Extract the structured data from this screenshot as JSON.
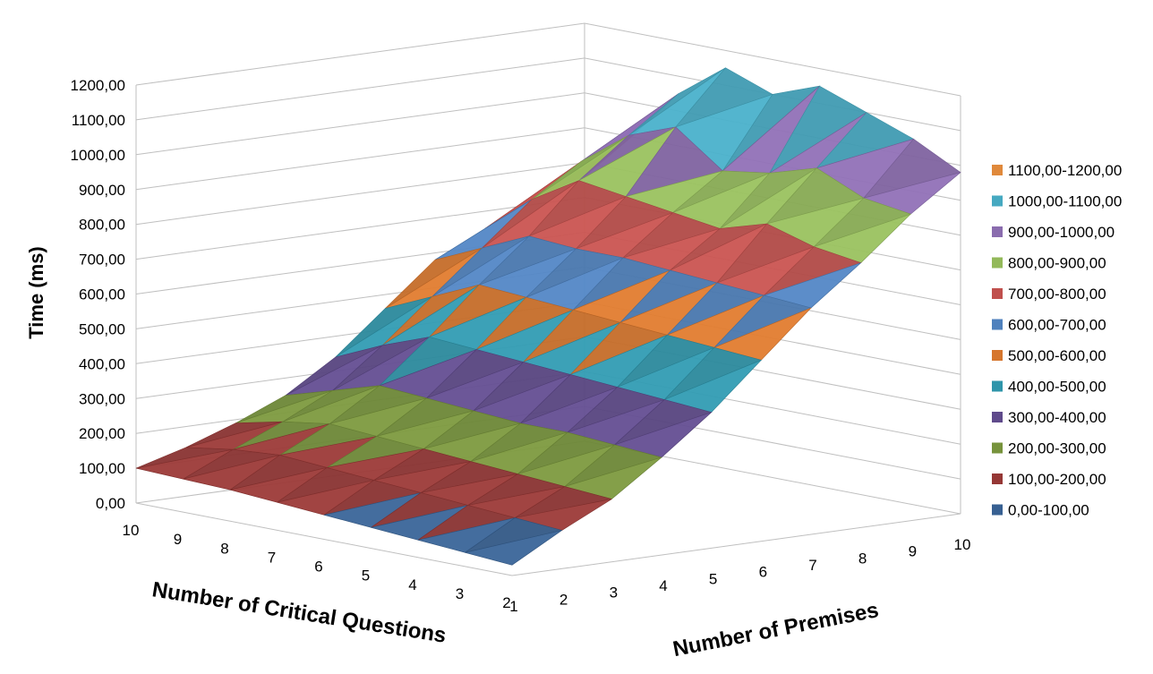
{
  "chart_data": {
    "type": "surface",
    "zlabel": "Time (ms)",
    "xlabel": "Number of Premises",
    "ylabel": "Number of Critical Questions",
    "premises": [
      "1",
      "2",
      "3",
      "4",
      "5",
      "6",
      "7",
      "8",
      "9",
      "10"
    ],
    "critical_questions": [
      "10",
      "9",
      "8",
      "7",
      "6",
      "5",
      "4",
      "3",
      "2"
    ],
    "zlim": [
      0,
      1200
    ],
    "z_ticks": [
      "0,00",
      "100,00",
      "200,00",
      "300,00",
      "400,00",
      "500,00",
      "600,00",
      "700,00",
      "800,00",
      "900,00",
      "1000,00",
      "1100,00",
      "1200,00"
    ],
    "grid": true,
    "legend_position": "right",
    "legend": [
      {
        "label": "1100,00-1200,00",
        "color": "#e0893b"
      },
      {
        "label": "1000,00-1100,00",
        "color": "#46a9c1"
      },
      {
        "label": "900,00-1000,00",
        "color": "#8a6cae"
      },
      {
        "label": "800,00-900,00",
        "color": "#93b95a"
      },
      {
        "label": "700,00-800,00",
        "color": "#c0504d"
      },
      {
        "label": "600,00-700,00",
        "color": "#4f81bd"
      },
      {
        "label": "500,00-600,00",
        "color": "#d6762d"
      },
      {
        "label": "400,00-500,00",
        "color": "#2f95aa"
      },
      {
        "label": "300,00-400,00",
        "color": "#5f4a8b"
      },
      {
        "label": "200,00-300,00",
        "color": "#77933c"
      },
      {
        "label": "100,00-200,00",
        "color": "#953735"
      },
      {
        "label": "0,00-100,00",
        "color": "#376092"
      }
    ],
    "values_note_rows": "rows indexed by critical questions 10..2, columns by premises 1..10",
    "values": [
      [
        100,
        140,
        190,
        250,
        340,
        460,
        580,
        650,
        720,
        760
      ],
      [
        95,
        160,
        220,
        290,
        400,
        520,
        640,
        760,
        850,
        900
      ],
      [
        90,
        170,
        240,
        330,
        450,
        580,
        700,
        840,
        950,
        1050
      ],
      [
        80,
        160,
        230,
        320,
        440,
        570,
        690,
        820,
        1000,
        1150
      ],
      [
        70,
        150,
        220,
        310,
        430,
        560,
        690,
        800,
        900,
        1100
      ],
      [
        60,
        140,
        210,
        300,
        420,
        550,
        680,
        780,
        920,
        1150
      ],
      [
        50,
        130,
        200,
        300,
        410,
        540,
        670,
        820,
        960,
        1100
      ],
      [
        40,
        120,
        190,
        290,
        400,
        530,
        660,
        780,
        900,
        1050
      ],
      [
        30,
        110,
        180,
        280,
        390,
        520,
        650,
        760,
        880,
        980
      ]
    ]
  }
}
